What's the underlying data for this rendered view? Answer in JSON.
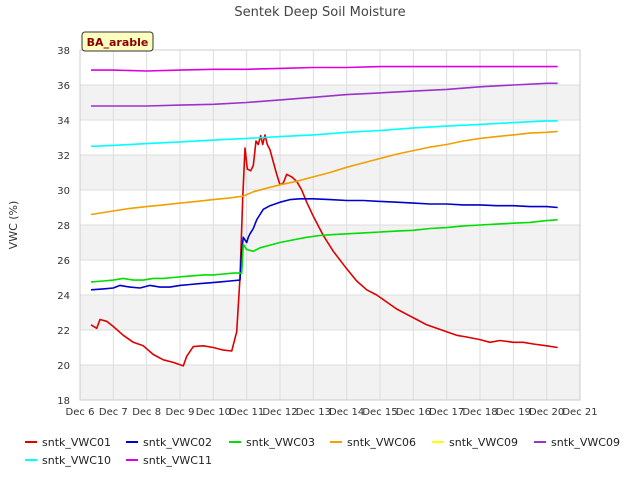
{
  "chart_data": {
    "type": "line",
    "title": "Sentek Deep Soil Moisture",
    "badge": "BA_arable",
    "ylabel": "VWC (%)",
    "xlabel": "",
    "xlim": [
      6,
      21
    ],
    "ylim": [
      18,
      38
    ],
    "x_ticks": [
      {
        "x": 6,
        "label": "Dec 6"
      },
      {
        "x": 7,
        "label": "Dec 7"
      },
      {
        "x": 8,
        "label": "Dec 8"
      },
      {
        "x": 9,
        "label": "Dec 9"
      },
      {
        "x": 10,
        "label": "Dec 10"
      },
      {
        "x": 11,
        "label": "Dec 11"
      },
      {
        "x": 12,
        "label": "Dec 12"
      },
      {
        "x": 13,
        "label": "Dec 13"
      },
      {
        "x": 14,
        "label": "Dec 14"
      },
      {
        "x": 15,
        "label": "Dec 15"
      },
      {
        "x": 16,
        "label": "Dec 16"
      },
      {
        "x": 17,
        "label": "Dec 17"
      },
      {
        "x": 18,
        "label": "Dec 18"
      },
      {
        "x": 19,
        "label": "Dec 19"
      },
      {
        "x": 20,
        "label": "Dec 20"
      },
      {
        "x": 21,
        "label": "Dec 21"
      }
    ],
    "y_ticks": [
      18,
      20,
      22,
      24,
      26,
      28,
      30,
      32,
      34,
      36,
      38
    ],
    "grid": true,
    "legend_position": "bottom",
    "series": [
      {
        "name": "sntk_VWC01",
        "color": "#dd0000",
        "points": [
          [
            6.33,
            22.3
          ],
          [
            6.5,
            22.1
          ],
          [
            6.6,
            22.6
          ],
          [
            6.8,
            22.5
          ],
          [
            7.0,
            22.2
          ],
          [
            7.3,
            21.7
          ],
          [
            7.6,
            21.3
          ],
          [
            7.9,
            21.1
          ],
          [
            8.2,
            20.6
          ],
          [
            8.5,
            20.3
          ],
          [
            8.8,
            20.15
          ],
          [
            9.1,
            19.95
          ],
          [
            9.2,
            20.5
          ],
          [
            9.4,
            21.05
          ],
          [
            9.7,
            21.1
          ],
          [
            10.0,
            21.0
          ],
          [
            10.3,
            20.85
          ],
          [
            10.55,
            20.8
          ],
          [
            10.7,
            21.9
          ],
          [
            10.8,
            25.0
          ],
          [
            10.88,
            29.5
          ],
          [
            10.95,
            32.4
          ],
          [
            11.02,
            31.2
          ],
          [
            11.12,
            31.1
          ],
          [
            11.2,
            31.4
          ],
          [
            11.28,
            32.8
          ],
          [
            11.35,
            32.6
          ],
          [
            11.42,
            33.1
          ],
          [
            11.48,
            32.6
          ],
          [
            11.55,
            33.15
          ],
          [
            11.62,
            32.6
          ],
          [
            11.7,
            32.3
          ],
          [
            11.8,
            31.6
          ],
          [
            11.9,
            30.9
          ],
          [
            12.0,
            30.3
          ],
          [
            12.1,
            30.4
          ],
          [
            12.2,
            30.9
          ],
          [
            12.35,
            30.75
          ],
          [
            12.5,
            30.5
          ],
          [
            12.65,
            30.0
          ],
          [
            12.8,
            29.3
          ],
          [
            13.0,
            28.5
          ],
          [
            13.3,
            27.4
          ],
          [
            13.6,
            26.5
          ],
          [
            14.0,
            25.5
          ],
          [
            14.3,
            24.8
          ],
          [
            14.6,
            24.3
          ],
          [
            14.9,
            24.0
          ],
          [
            15.2,
            23.6
          ],
          [
            15.5,
            23.2
          ],
          [
            15.8,
            22.9
          ],
          [
            16.1,
            22.6
          ],
          [
            16.4,
            22.3
          ],
          [
            16.7,
            22.1
          ],
          [
            17.0,
            21.9
          ],
          [
            17.3,
            21.7
          ],
          [
            17.6,
            21.6
          ],
          [
            18.0,
            21.45
          ],
          [
            18.3,
            21.3
          ],
          [
            18.6,
            21.4
          ],
          [
            19.0,
            21.3
          ],
          [
            19.3,
            21.3
          ],
          [
            19.6,
            21.2
          ],
          [
            20.0,
            21.1
          ],
          [
            20.33,
            21.0
          ]
        ]
      },
      {
        "name": "sntk_VWC02",
        "color": "#0000cc",
        "points": [
          [
            6.33,
            24.3
          ],
          [
            6.7,
            24.35
          ],
          [
            7.0,
            24.4
          ],
          [
            7.2,
            24.55
          ],
          [
            7.5,
            24.45
          ],
          [
            7.8,
            24.4
          ],
          [
            8.1,
            24.55
          ],
          [
            8.4,
            24.45
          ],
          [
            8.7,
            24.45
          ],
          [
            9.0,
            24.55
          ],
          [
            9.3,
            24.6
          ],
          [
            9.6,
            24.65
          ],
          [
            9.9,
            24.7
          ],
          [
            10.2,
            24.75
          ],
          [
            10.5,
            24.8
          ],
          [
            10.8,
            24.85
          ],
          [
            10.85,
            26.6
          ],
          [
            10.9,
            27.3
          ],
          [
            11.0,
            27.0
          ],
          [
            11.05,
            27.3
          ],
          [
            11.1,
            27.5
          ],
          [
            11.2,
            27.8
          ],
          [
            11.3,
            28.3
          ],
          [
            11.4,
            28.6
          ],
          [
            11.5,
            28.9
          ],
          [
            11.7,
            29.1
          ],
          [
            12.0,
            29.3
          ],
          [
            12.3,
            29.45
          ],
          [
            12.6,
            29.5
          ],
          [
            13.0,
            29.5
          ],
          [
            13.5,
            29.45
          ],
          [
            14.0,
            29.4
          ],
          [
            14.5,
            29.4
          ],
          [
            15.0,
            29.35
          ],
          [
            15.5,
            29.3
          ],
          [
            16.0,
            29.25
          ],
          [
            16.5,
            29.2
          ],
          [
            17.0,
            29.2
          ],
          [
            17.5,
            29.15
          ],
          [
            18.0,
            29.15
          ],
          [
            18.5,
            29.1
          ],
          [
            19.0,
            29.1
          ],
          [
            19.5,
            29.05
          ],
          [
            20.0,
            29.05
          ],
          [
            20.33,
            29.0
          ]
        ]
      },
      {
        "name": "sntk_VWC03",
        "color": "#00dd00",
        "points": [
          [
            6.33,
            24.75
          ],
          [
            6.7,
            24.8
          ],
          [
            7.0,
            24.85
          ],
          [
            7.3,
            24.95
          ],
          [
            7.6,
            24.85
          ],
          [
            7.9,
            24.85
          ],
          [
            8.2,
            24.95
          ],
          [
            8.5,
            24.95
          ],
          [
            8.8,
            25.0
          ],
          [
            9.1,
            25.05
          ],
          [
            9.4,
            25.1
          ],
          [
            9.7,
            25.15
          ],
          [
            10.0,
            25.15
          ],
          [
            10.3,
            25.2
          ],
          [
            10.6,
            25.25
          ],
          [
            10.85,
            25.25
          ],
          [
            10.9,
            26.9
          ],
          [
            11.0,
            26.6
          ],
          [
            11.2,
            26.5
          ],
          [
            11.4,
            26.7
          ],
          [
            11.7,
            26.85
          ],
          [
            12.0,
            27.0
          ],
          [
            12.4,
            27.15
          ],
          [
            12.8,
            27.3
          ],
          [
            13.2,
            27.4
          ],
          [
            13.6,
            27.45
          ],
          [
            14.0,
            27.5
          ],
          [
            14.5,
            27.55
          ],
          [
            15.0,
            27.6
          ],
          [
            15.5,
            27.65
          ],
          [
            16.0,
            27.7
          ],
          [
            16.5,
            27.8
          ],
          [
            17.0,
            27.85
          ],
          [
            17.5,
            27.95
          ],
          [
            18.0,
            28.0
          ],
          [
            18.5,
            28.05
          ],
          [
            19.0,
            28.1
          ],
          [
            19.5,
            28.15
          ],
          [
            20.0,
            28.25
          ],
          [
            20.33,
            28.3
          ]
        ]
      },
      {
        "name": "sntk_VWC06",
        "color": "#f0a000",
        "points": [
          [
            6.33,
            28.6
          ],
          [
            7.0,
            28.8
          ],
          [
            7.5,
            28.95
          ],
          [
            8.0,
            29.05
          ],
          [
            8.5,
            29.15
          ],
          [
            9.0,
            29.25
          ],
          [
            9.5,
            29.35
          ],
          [
            10.0,
            29.45
          ],
          [
            10.5,
            29.55
          ],
          [
            10.9,
            29.65
          ],
          [
            11.2,
            29.9
          ],
          [
            11.6,
            30.1
          ],
          [
            12.0,
            30.3
          ],
          [
            12.5,
            30.5
          ],
          [
            13.0,
            30.75
          ],
          [
            13.5,
            31.0
          ],
          [
            14.0,
            31.3
          ],
          [
            14.5,
            31.55
          ],
          [
            15.0,
            31.8
          ],
          [
            15.5,
            32.05
          ],
          [
            16.0,
            32.25
          ],
          [
            16.5,
            32.45
          ],
          [
            17.0,
            32.6
          ],
          [
            17.5,
            32.8
          ],
          [
            18.0,
            32.95
          ],
          [
            18.5,
            33.05
          ],
          [
            19.0,
            33.15
          ],
          [
            19.5,
            33.25
          ],
          [
            20.0,
            33.3
          ],
          [
            20.33,
            33.35
          ]
        ]
      },
      {
        "name": "sntk_VWC09",
        "color": "#ffff00",
        "points": []
      },
      {
        "name": "sntk_VWC09",
        "color": "#9933cc",
        "points": [
          [
            6.33,
            34.8
          ],
          [
            7.0,
            34.8
          ],
          [
            8.0,
            34.8
          ],
          [
            9.0,
            34.85
          ],
          [
            10.0,
            34.9
          ],
          [
            11.0,
            35.0
          ],
          [
            12.0,
            35.15
          ],
          [
            13.0,
            35.3
          ],
          [
            14.0,
            35.45
          ],
          [
            15.0,
            35.55
          ],
          [
            16.0,
            35.65
          ],
          [
            17.0,
            35.75
          ],
          [
            18.0,
            35.9
          ],
          [
            19.0,
            36.0
          ],
          [
            20.0,
            36.1
          ],
          [
            20.33,
            36.1
          ]
        ]
      },
      {
        "name": "sntk_VWC10",
        "color": "#00ffff",
        "points": [
          [
            6.33,
            32.5
          ],
          [
            7.0,
            32.55
          ],
          [
            8.0,
            32.65
          ],
          [
            9.0,
            32.75
          ],
          [
            10.0,
            32.85
          ],
          [
            11.0,
            32.95
          ],
          [
            12.0,
            33.05
          ],
          [
            13.0,
            33.15
          ],
          [
            14.0,
            33.3
          ],
          [
            15.0,
            33.4
          ],
          [
            16.0,
            33.55
          ],
          [
            17.0,
            33.65
          ],
          [
            18.0,
            33.75
          ],
          [
            19.0,
            33.85
          ],
          [
            20.0,
            33.95
          ],
          [
            20.33,
            33.95
          ]
        ]
      },
      {
        "name": "sntk_VWC11",
        "color": "#dd00dd",
        "points": [
          [
            6.33,
            36.85
          ],
          [
            7.0,
            36.85
          ],
          [
            8.0,
            36.8
          ],
          [
            9.0,
            36.85
          ],
          [
            10.0,
            36.9
          ],
          [
            11.0,
            36.9
          ],
          [
            12.0,
            36.95
          ],
          [
            13.0,
            37.0
          ],
          [
            14.0,
            37.0
          ],
          [
            15.0,
            37.05
          ],
          [
            16.0,
            37.05
          ],
          [
            17.0,
            37.05
          ],
          [
            18.0,
            37.05
          ],
          [
            19.0,
            37.05
          ],
          [
            20.0,
            37.05
          ],
          [
            20.33,
            37.05
          ]
        ]
      }
    ]
  }
}
